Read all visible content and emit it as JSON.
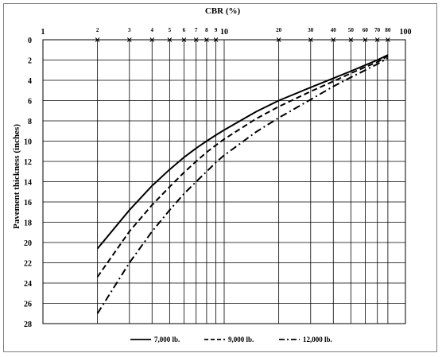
{
  "chart_data": {
    "type": "line",
    "title": "",
    "xlabel": "CBR (%)",
    "ylabel": "Pavement thickness (inches)",
    "x_scale": "log",
    "xlim": [
      1,
      100
    ],
    "ylim": [
      0,
      28
    ],
    "y_inverted": true,
    "grid": true,
    "legend_position": "bottom",
    "decade_labels": [
      {
        "value": 1,
        "label": "1"
      },
      {
        "value": 10,
        "label": "10"
      },
      {
        "value": 100,
        "label": "100"
      }
    ],
    "minor_labels": [
      {
        "value": 2,
        "label": "2"
      },
      {
        "value": 3,
        "label": "3"
      },
      {
        "value": 4,
        "label": "4"
      },
      {
        "value": 5,
        "label": "5"
      },
      {
        "value": 6,
        "label": "6"
      },
      {
        "value": 7,
        "label": "7"
      },
      {
        "value": 8,
        "label": "8"
      },
      {
        "value": 9,
        "label": "9"
      },
      {
        "value": 20,
        "label": "20"
      },
      {
        "value": 30,
        "label": "30"
      },
      {
        "value": 40,
        "label": "40"
      },
      {
        "value": 50,
        "label": "50"
      },
      {
        "value": 60,
        "label": "60"
      },
      {
        "value": 70,
        "label": "70"
      },
      {
        "value": 80,
        "label": "80"
      }
    ],
    "x_markers": [
      2,
      3,
      4,
      5,
      6,
      7,
      8,
      9,
      20,
      30,
      40,
      50,
      60,
      70,
      80
    ],
    "y_ticks": [
      0,
      2,
      4,
      6,
      8,
      10,
      12,
      14,
      16,
      18,
      20,
      22,
      24,
      26,
      28
    ],
    "series": [
      {
        "name": "7,000 lb.",
        "style": "solid",
        "x": [
          2,
          3,
          4,
          5,
          6,
          7,
          8,
          9,
          10,
          15,
          20,
          30,
          40,
          50,
          60,
          70,
          80
        ],
        "y": [
          20.6,
          16.8,
          14.4,
          12.8,
          11.6,
          10.7,
          10.0,
          9.4,
          8.9,
          7.1,
          6.0,
          4.7,
          3.8,
          3.1,
          2.5,
          2.0,
          1.5
        ]
      },
      {
        "name": "9,000 lb.",
        "style": "dashed",
        "x": [
          2,
          3,
          4,
          5,
          6,
          7,
          8,
          9,
          10,
          15,
          20,
          30,
          40,
          50,
          60,
          70,
          80
        ],
        "y": [
          23.4,
          18.9,
          16.3,
          14.5,
          13.1,
          12.0,
          11.1,
          10.4,
          9.8,
          7.8,
          6.6,
          5.1,
          4.1,
          3.3,
          2.7,
          2.2,
          1.6
        ]
      },
      {
        "name": "12,000 lb.",
        "style": "dash-dot",
        "x": [
          2,
          3,
          4,
          5,
          6,
          7,
          8,
          9,
          10,
          15,
          20,
          30,
          40,
          50,
          60,
          70,
          80
        ],
        "y": [
          27.0,
          22.0,
          18.9,
          16.8,
          15.2,
          14.0,
          13.0,
          12.1,
          11.4,
          9.1,
          7.7,
          5.9,
          4.6,
          3.7,
          3.0,
          2.4,
          1.8
        ]
      }
    ]
  }
}
